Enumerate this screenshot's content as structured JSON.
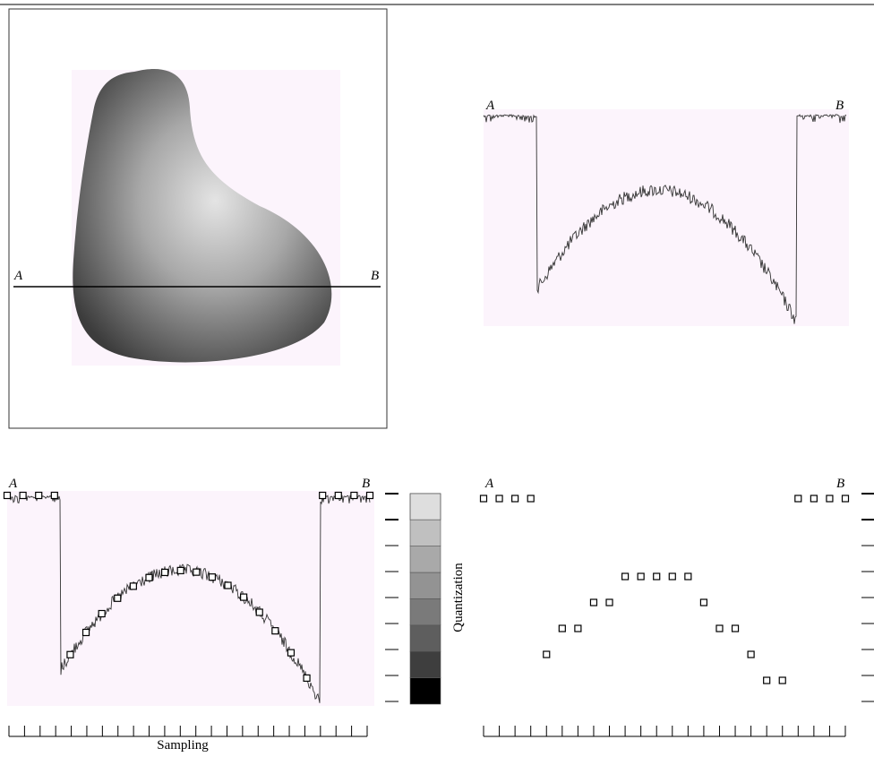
{
  "panel_a": {
    "point_a": "A",
    "point_b": "B"
  },
  "panel_b": {
    "point_a": "A",
    "point_b": "B"
  },
  "panel_c": {
    "point_a": "A",
    "point_b": "B",
    "x_label": "Sampling",
    "y_label": "Quantization"
  },
  "panel_d": {
    "point_a": "A",
    "point_b": "B",
    "quantized_samples": [
      8,
      8,
      8,
      8,
      2,
      3,
      3,
      4,
      4,
      5,
      5,
      5,
      5,
      5,
      4,
      3,
      3,
      2,
      1,
      1,
      8,
      8,
      8,
      8
    ]
  }
}
